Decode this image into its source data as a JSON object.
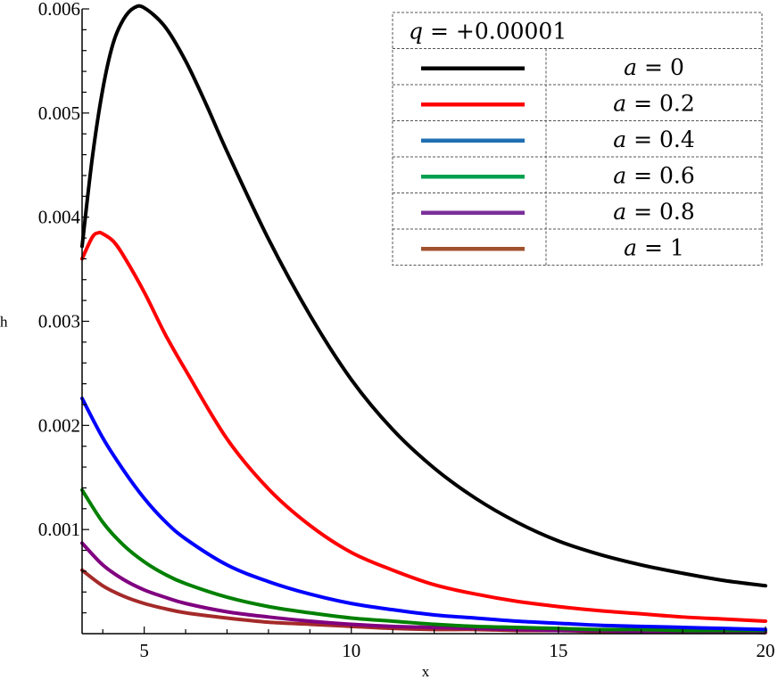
{
  "chart_data": {
    "type": "line",
    "xlabel": "x",
    "ylabel": "h",
    "xlim": [
      3.5,
      20
    ],
    "ylim": [
      0,
      0.006
    ],
    "x_ticks": [
      5,
      10,
      15,
      20
    ],
    "x_tick_labels": [
      "5",
      "10",
      "15",
      "20"
    ],
    "y_ticks": [
      0.001,
      0.002,
      0.003,
      0.004,
      0.005,
      0.006
    ],
    "y_tick_labels": [
      "0.001",
      "0.002",
      "0.003",
      "0.004",
      "0.005",
      "0.006"
    ],
    "grid": false,
    "legend": {
      "placement": "top-right",
      "title_var": "q",
      "title_value": "= +0.00001",
      "entries": [
        {
          "var": "a",
          "value": "= 0"
        },
        {
          "var": "a",
          "value": "= 0.2"
        },
        {
          "var": "a",
          "value": "= 0.4"
        },
        {
          "var": "a",
          "value": "= 0.6"
        },
        {
          "var": "a",
          "value": "= 0.8"
        },
        {
          "var": "a",
          "value": "= 1"
        }
      ]
    },
    "series": [
      {
        "color": "#000000",
        "legend_color": "#000000",
        "x": [
          3.5,
          3.75,
          4,
          4.25,
          4.5,
          4.75,
          5,
          5.5,
          6,
          6.5,
          7,
          8,
          9,
          10,
          11,
          12,
          13,
          14,
          15,
          16,
          17,
          18,
          19,
          20
        ],
        "y": [
          0.00372,
          0.00458,
          0.00523,
          0.00567,
          0.0059,
          0.00601,
          0.00601,
          0.00583,
          0.0055,
          0.00508,
          0.00463,
          0.00379,
          0.00306,
          0.00244,
          0.00196,
          0.00159,
          0.0013,
          0.00107,
          0.00089,
          0.00076,
          0.00066,
          0.00058,
          0.00051,
          0.00046
        ]
      },
      {
        "color": "#ff0000",
        "legend_color": "#ff0000",
        "x": [
          3.5,
          3.75,
          3.9,
          4,
          4.25,
          4.5,
          5,
          5.5,
          6,
          7,
          8,
          9,
          10,
          11,
          12,
          13,
          14,
          15,
          16,
          17,
          18,
          19,
          20
        ],
        "y": [
          0.0036,
          0.00381,
          0.00385,
          0.00384,
          0.00377,
          0.00363,
          0.00328,
          0.00288,
          0.00253,
          0.00187,
          0.00139,
          0.00104,
          0.00078,
          0.00061,
          0.00047,
          0.00038,
          0.00031,
          0.00026,
          0.00022,
          0.00019,
          0.00016,
          0.00014,
          0.00012
        ]
      },
      {
        "color": "#0000ff",
        "legend_color": "#1f6fb2",
        "x": [
          3.5,
          4,
          4.5,
          5,
          5.5,
          6,
          7,
          8,
          9,
          10,
          11,
          12,
          13,
          14,
          15,
          16,
          17,
          18,
          19,
          20
        ],
        "y": [
          0.00226,
          0.00188,
          0.00157,
          0.0013,
          0.00108,
          0.00091,
          0.00066,
          0.0005,
          0.00038,
          0.00029,
          0.00023,
          0.00018,
          0.00015,
          0.00012,
          0.0001,
          8e-05,
          7e-05,
          6e-05,
          5e-05,
          4e-05
        ]
      },
      {
        "color": "#008000",
        "legend_color": "#00a050",
        "x": [
          3.5,
          4,
          4.5,
          5,
          5.5,
          6,
          7,
          8,
          9,
          10,
          11,
          12,
          13,
          14,
          15,
          16,
          17,
          18,
          19,
          20
        ],
        "y": [
          0.00138,
          0.00107,
          0.00085,
          0.00069,
          0.00057,
          0.00048,
          0.00035,
          0.00026,
          0.0002,
          0.00015,
          0.00012,
          9e-05,
          7e-05,
          6e-05,
          5e-05,
          4e-05,
          4e-05,
          3e-05,
          3e-05,
          3e-05
        ]
      },
      {
        "color": "#800080",
        "legend_color": "#7a2e9a",
        "x": [
          3.5,
          4,
          4.5,
          5,
          5.5,
          6,
          7,
          8,
          9,
          10,
          11,
          12,
          13,
          14,
          15,
          16,
          17,
          18,
          19,
          20
        ],
        "y": [
          0.00087,
          0.00066,
          0.00052,
          0.00042,
          0.00035,
          0.00029,
          0.00021,
          0.00016,
          0.00012,
          9e-05,
          7e-05,
          6e-05,
          5e-05,
          4e-05,
          3e-05,
          3e-05,
          2e-05,
          2e-05,
          2e-05,
          2e-05
        ]
      },
      {
        "color": "#a52a2a",
        "legend_color": "#a0522d",
        "x": [
          3.5,
          4,
          4.5,
          5,
          5.5,
          6,
          7,
          8,
          9,
          10,
          11,
          12,
          13,
          14,
          15,
          16,
          17,
          18,
          19,
          20
        ],
        "y": [
          0.00061,
          0.00046,
          0.00036,
          0.00029,
          0.00024,
          0.0002,
          0.00015,
          0.00011,
          9e-05,
          7e-05,
          5e-05,
          4e-05,
          4e-05,
          3e-05,
          3e-05,
          2e-05,
          2e-05,
          2e-05,
          2e-05,
          1e-05
        ]
      }
    ]
  }
}
